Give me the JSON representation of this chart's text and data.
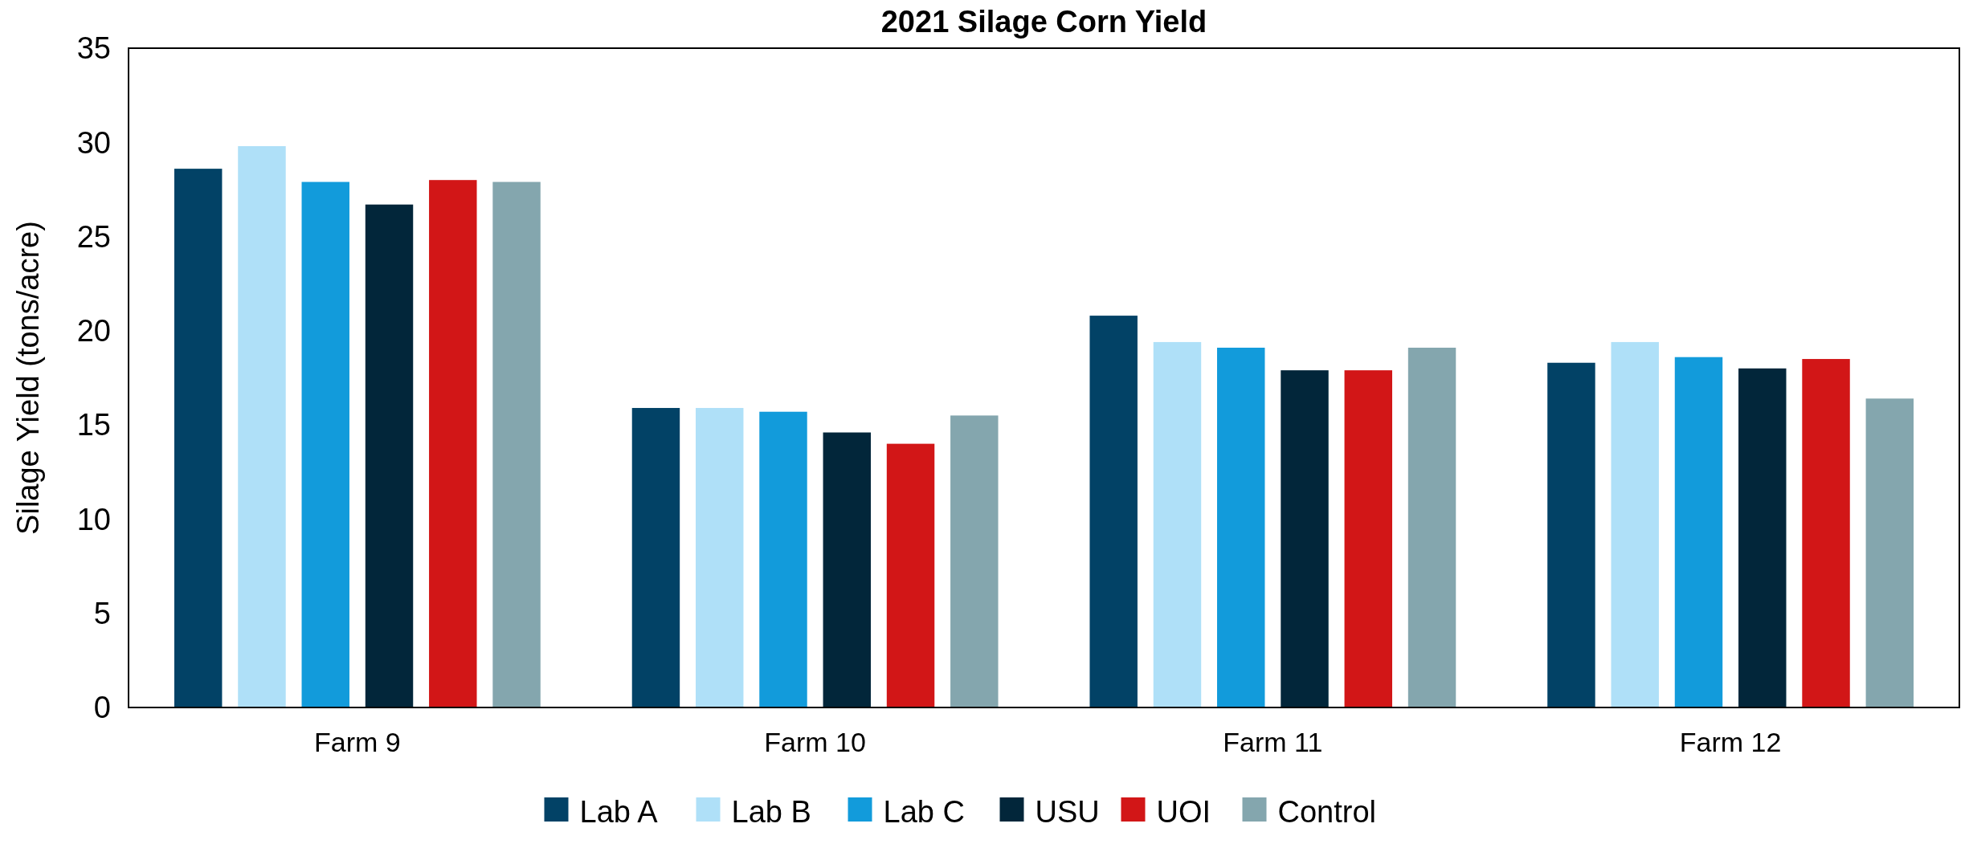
{
  "chart_data": {
    "type": "bar",
    "title": "2021 Silage Corn Yield",
    "ylabel": "Silage Yield (tons/acre)",
    "categories": [
      "Farm 9",
      "Farm 10",
      "Farm 11",
      "Farm 12"
    ],
    "series": [
      {
        "name": "Lab A",
        "color": "#024266",
        "values": [
          28.6,
          15.9,
          20.8,
          18.3
        ]
      },
      {
        "name": "Lab B",
        "color": "#afe0f8",
        "values": [
          29.8,
          15.9,
          19.4,
          19.4
        ]
      },
      {
        "name": "Lab C",
        "color": "#129bdb",
        "values": [
          27.9,
          15.7,
          19.1,
          18.6
        ]
      },
      {
        "name": "USU",
        "color": "#02263a",
        "values": [
          26.7,
          14.6,
          17.9,
          18.0
        ]
      },
      {
        "name": "UOI",
        "color": "#d21617",
        "values": [
          28.0,
          14.0,
          17.9,
          18.5
        ]
      },
      {
        "name": "Control",
        "color": "#84a6ae",
        "values": [
          27.9,
          15.5,
          19.1,
          16.4
        ]
      }
    ],
    "ylim": [
      0,
      35
    ],
    "yticks": [
      0,
      5,
      10,
      15,
      20,
      25,
      30,
      35
    ],
    "grid": false,
    "legend": "bottom"
  }
}
